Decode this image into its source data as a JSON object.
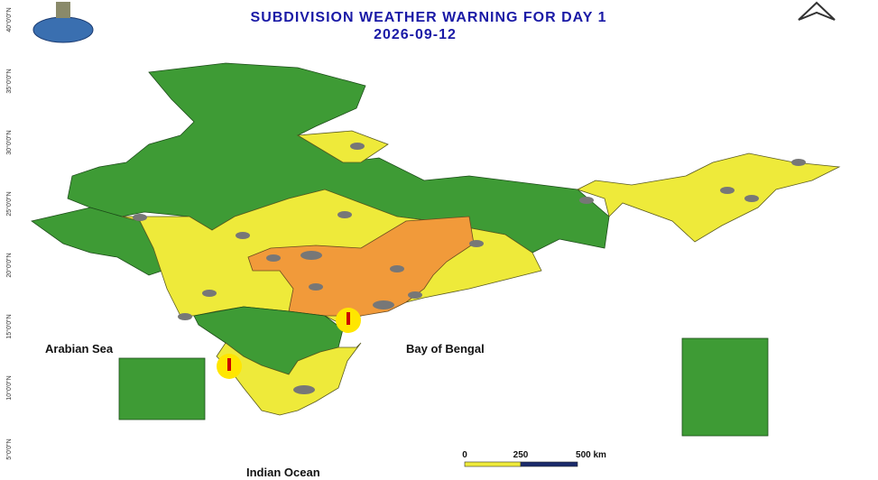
{
  "header": {
    "title": "SUBDIVISION WEATHER WARNING FOR DAY 1",
    "date": "2026-09-12"
  },
  "map_labels": {
    "arabian_sea": "Arabian Sea",
    "bay_of_bengal": "Bay of Bengal",
    "indian_ocean": "Indian Ocean"
  },
  "scale_bar": {
    "labels": [
      "0",
      "250",
      "500 km"
    ]
  },
  "graticule": {
    "latitude_labels": [
      "40°0'0\"N",
      "35°0'0\"N",
      "30°0'0\"N",
      "25°0'0\"N",
      "20°0'0\"N",
      "15°0'0\"N",
      "10°0'0\"N",
      "5°0'0\"N"
    ]
  }
}
